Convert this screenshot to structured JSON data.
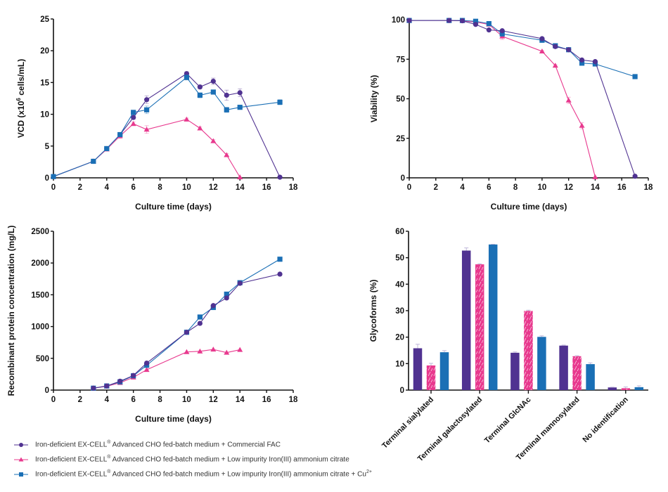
{
  "colors": {
    "fac": "#503291",
    "lowimp": "#e8398e",
    "lowimp_cu": "#1a6fb5",
    "axis": "#111111",
    "errorbar": "#b9b0d6"
  },
  "legend": [
    {
      "key": "fac",
      "marker": "circle",
      "text_pre": "Iron-deficient EX-CELL",
      "reg": "®",
      "text_post": " Advanced CHO fed-batch medium + Commercial FAC",
      "sup": ""
    },
    {
      "key": "lowimp",
      "marker": "triangle",
      "text_pre": "Iron-deficient EX-CELL",
      "reg": "®",
      "text_post": " Advanced CHO fed-batch medium + Low impurity Iron(III) ammonium citrate",
      "sup": ""
    },
    {
      "key": "lowimp_cu",
      "marker": "square",
      "text_pre": "Iron-deficient EX-CELL",
      "reg": "®",
      "text_post": " Advanced CHO fed-batch medium + Low impurity Iron(III) ammonium citrate + Cu",
      "sup": "2+"
    }
  ],
  "chart_data": [
    {
      "id": "vcd",
      "type": "line",
      "title": "",
      "xlabel": "Culture time (days)",
      "ylabel": "VCD (x10^6 cells/mL)",
      "ylabel_parts": [
        "VCD (x10",
        "6",
        " cells/mL)"
      ],
      "xlim": [
        0,
        18
      ],
      "ylim": [
        0,
        25
      ],
      "xticks": [
        0,
        2,
        4,
        6,
        8,
        10,
        12,
        14,
        16,
        18
      ],
      "yticks": [
        0,
        5,
        10,
        15,
        20,
        25
      ],
      "series": [
        {
          "key": "fac",
          "marker": "circle",
          "x": [
            0,
            3,
            4,
            5,
            6,
            7,
            10,
            11,
            12,
            13,
            14,
            17
          ],
          "y": [
            0.2,
            2.6,
            4.6,
            6.8,
            9.5,
            12.3,
            16.4,
            14.3,
            15.2,
            13.0,
            13.4,
            0.1
          ],
          "err": [
            0,
            0.1,
            0.2,
            0.3,
            0.3,
            0.6,
            0.3,
            0.3,
            0.5,
            0.8,
            0.6,
            0
          ]
        },
        {
          "key": "lowimp",
          "marker": "triangle",
          "x": [
            0,
            3,
            4,
            5,
            6,
            7,
            10,
            11,
            12,
            13,
            14
          ],
          "y": [
            0.2,
            2.6,
            4.5,
            6.6,
            8.5,
            7.6,
            9.2,
            7.8,
            5.8,
            3.6,
            0.1
          ],
          "err": [
            0,
            0.1,
            0.2,
            0.4,
            0.3,
            0.6,
            0.2,
            0.2,
            0.2,
            0.2,
            0
          ]
        },
        {
          "key": "lowimp_cu",
          "marker": "square",
          "x": [
            0,
            3,
            4,
            5,
            6,
            7,
            10,
            11,
            12,
            13,
            14,
            17
          ],
          "y": [
            0.2,
            2.6,
            4.6,
            6.8,
            10.3,
            10.7,
            15.8,
            13.0,
            13.5,
            10.7,
            11.1,
            11.9
          ],
          "err": [
            0,
            0.1,
            0.2,
            0.3,
            0.3,
            0.6,
            0.4,
            0.4,
            0.3,
            0.4,
            0.2,
            0.4
          ]
        }
      ]
    },
    {
      "id": "viability",
      "type": "line",
      "title": "",
      "xlabel": "Culture time (days)",
      "ylabel": "Viability (%)",
      "xlim": [
        0,
        18
      ],
      "ylim": [
        0,
        100
      ],
      "xticks": [
        0,
        2,
        4,
        6,
        8,
        10,
        12,
        14,
        16,
        18
      ],
      "yticks": [
        0,
        25,
        50,
        75,
        100
      ],
      "series": [
        {
          "key": "lowimp",
          "marker": "triangle",
          "x": [
            0,
            3,
            4,
            5,
            6,
            7,
            10,
            11,
            12,
            13,
            14
          ],
          "y": [
            99.5,
            99.5,
            99.3,
            98.5,
            97,
            89.5,
            80,
            71,
            49,
            33,
            0.5
          ],
          "err": [
            0,
            0,
            0,
            0.5,
            0.5,
            2,
            0.5,
            0.5,
            2,
            2,
            0
          ]
        },
        {
          "key": "lowimp_cu",
          "marker": "square",
          "x": [
            0,
            3,
            4,
            5,
            6,
            7,
            10,
            11,
            12,
            13,
            14,
            17
          ],
          "y": [
            99.5,
            99.5,
            99.5,
            99,
            97.5,
            91,
            87,
            83.5,
            81,
            72.5,
            72,
            64
          ],
          "err": [
            0,
            0,
            0,
            0.3,
            0.3,
            0.5,
            0.5,
            0.5,
            0.5,
            0.5,
            0.5,
            0.5
          ]
        },
        {
          "key": "fac",
          "marker": "circle",
          "x": [
            0,
            3,
            4,
            5,
            6,
            7,
            10,
            11,
            12,
            13,
            14,
            17
          ],
          "y": [
            99.5,
            99.5,
            99.3,
            97,
            93.5,
            93,
            88,
            83,
            81,
            74.5,
            73.5,
            1
          ],
          "err": [
            0,
            0,
            0,
            0.3,
            0.3,
            0.5,
            0.5,
            0.5,
            0.5,
            0.5,
            0.5,
            0
          ]
        }
      ]
    },
    {
      "id": "titer",
      "type": "line",
      "title": "",
      "xlabel": "Culture time (days)",
      "ylabel": "Recombinant protein concentration (mg/L)",
      "xlim": [
        0,
        18
      ],
      "ylim": [
        0,
        2500
      ],
      "xticks": [
        0,
        2,
        4,
        6,
        8,
        10,
        12,
        14,
        16,
        18
      ],
      "yticks": [
        0,
        500,
        1000,
        1500,
        2000,
        2500
      ],
      "series": [
        {
          "key": "lowimp",
          "marker": "triangle",
          "x": [
            3,
            4,
            5,
            6,
            7,
            10,
            11,
            12,
            13,
            14
          ],
          "y": [
            30,
            60,
            115,
            200,
            320,
            600,
            610,
            640,
            590,
            635
          ],
          "err": [
            0,
            0,
            0,
            0,
            0,
            0,
            0,
            0,
            0,
            0
          ]
        },
        {
          "key": "lowimp_cu",
          "marker": "square",
          "x": [
            3,
            4,
            5,
            6,
            7,
            10,
            11,
            12,
            13,
            14,
            17
          ],
          "y": [
            30,
            65,
            130,
            225,
            390,
            910,
            1150,
            1300,
            1510,
            1690,
            2060
          ],
          "err": [
            0,
            0,
            0,
            0,
            0,
            0,
            0,
            0,
            0,
            0,
            0
          ]
        },
        {
          "key": "fac",
          "marker": "circle",
          "x": [
            3,
            4,
            5,
            6,
            7,
            10,
            11,
            12,
            13,
            14,
            17
          ],
          "y": [
            30,
            65,
            140,
            230,
            425,
            910,
            1050,
            1330,
            1450,
            1680,
            1825
          ],
          "err": [
            0,
            0,
            0,
            0,
            0,
            0,
            0,
            0,
            0,
            0,
            0
          ]
        }
      ]
    },
    {
      "id": "glycoforms",
      "type": "bar",
      "title": "",
      "xlabel": "",
      "ylabel": "Glycoforms (%)",
      "ylim": [
        0,
        60
      ],
      "yticks": [
        0,
        10,
        20,
        30,
        40,
        50,
        60
      ],
      "categories": [
        "Terminal sialylated",
        "Terminal galactosylated",
        "Terminal GlcNAc",
        "Terminal mannosylated",
        "No identification"
      ],
      "series": [
        {
          "key": "fac",
          "values": [
            15.8,
            52.7,
            14.1,
            16.8,
            1.0
          ],
          "err": [
            1.5,
            1.0,
            0.3,
            0.2,
            0.1
          ]
        },
        {
          "key": "lowimp",
          "values": [
            9.3,
            47.5,
            29.9,
            12.8,
            0.7
          ],
          "err": [
            0.8,
            0.2,
            0.3,
            0.2,
            0.5
          ]
        },
        {
          "key": "lowimp_cu",
          "values": [
            14.3,
            55.0,
            20.1,
            9.8,
            1.1
          ],
          "err": [
            0.6,
            0.1,
            0.4,
            0.5,
            0.5
          ]
        }
      ]
    }
  ]
}
